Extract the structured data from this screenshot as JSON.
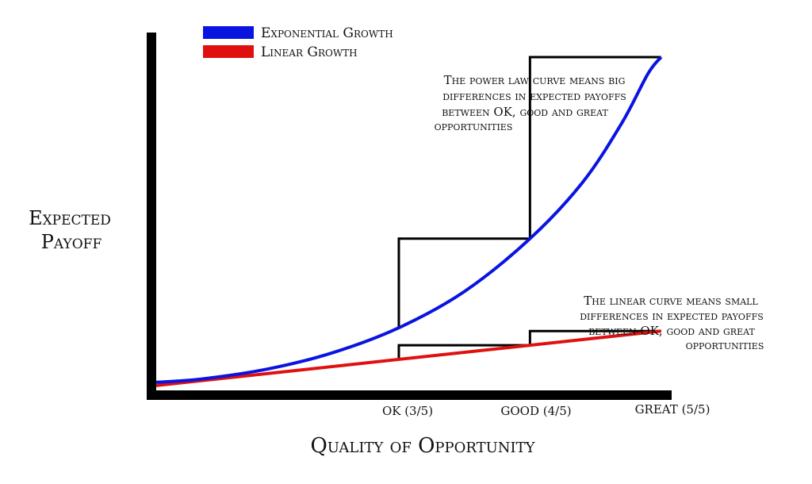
{
  "chart_data": {
    "type": "line",
    "title": "",
    "xlabel": "Quality of Opportunity",
    "ylabel_lines": [
      "Expected",
      "Payoff"
    ],
    "x_ticks": [
      {
        "label": "OK (3/5)",
        "value": 3
      },
      {
        "label": "GOOD (4/5)",
        "value": 4
      },
      {
        "label": "GREAT (5/5)",
        "value": 5
      }
    ],
    "xlim": [
      1.15,
      5.05
    ],
    "ylim": [
      0,
      100
    ],
    "grid": false,
    "legend_position": "top-left",
    "series": [
      {
        "name": "Exponential Growth",
        "color": "#0a14e0",
        "x": [
          1.15,
          1.5,
          2.0,
          2.5,
          3.0,
          3.5,
          4.0,
          4.4,
          4.7,
          4.9,
          5.0
        ],
        "y": [
          1.5,
          2.5,
          5.5,
          10.5,
          18,
          29,
          45,
          62,
          80,
          95,
          100
        ]
      },
      {
        "name": "Linear Growth",
        "color": "#e01010",
        "x": [
          1.15,
          5.0
        ],
        "y": [
          0.5,
          17
        ]
      }
    ],
    "annotations": [
      {
        "id": "power",
        "lines": [
          "The power law curve means big",
          "differences in expected payoffs",
          "between OK, good and great",
          "opportunities"
        ]
      },
      {
        "id": "linear",
        "lines": [
          "The linear curve means small",
          "differences in expected payoffs",
          "between OK, good and great",
          "opportunities"
        ]
      }
    ]
  }
}
